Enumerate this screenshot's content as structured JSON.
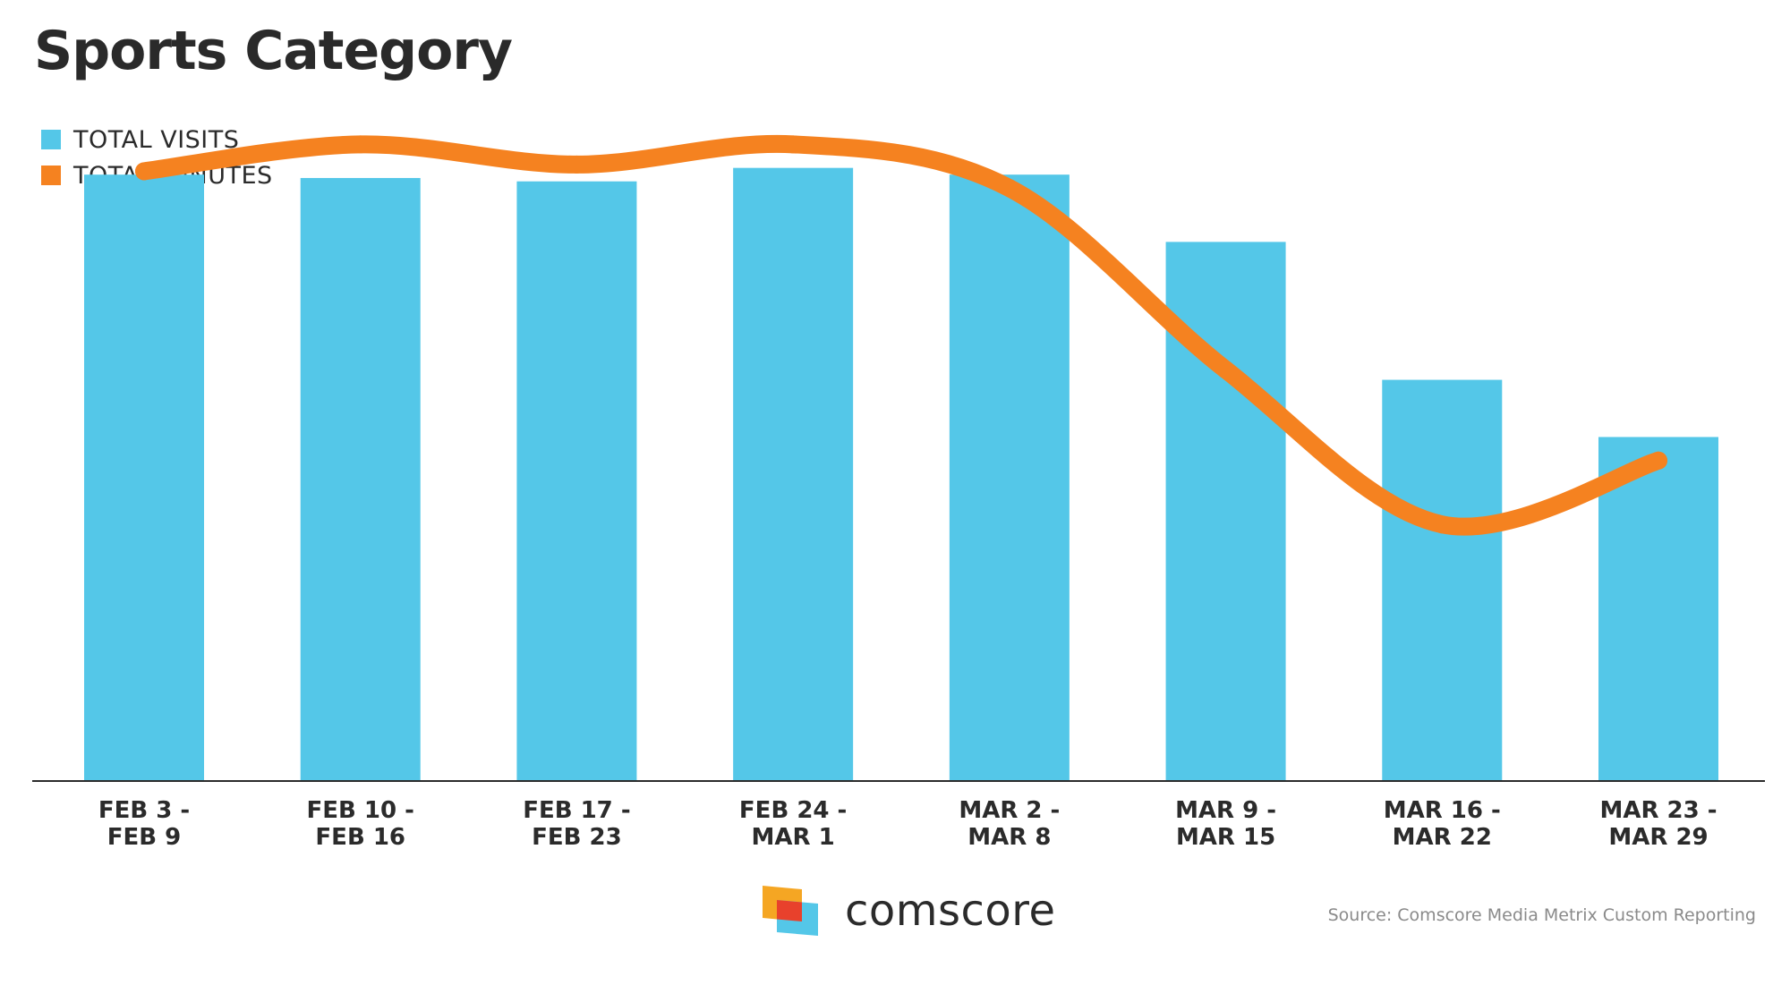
{
  "colors": {
    "visits": "#54c7e8",
    "minutes": "#f58220",
    "axis": "#2b2b2b",
    "logo_yellow": "#f5a623",
    "logo_red": "#e8412c",
    "logo_blue": "#54c7e8"
  },
  "chart_data": {
    "type": "bar",
    "title": "Sports Category",
    "xlabel": "",
    "ylabel": "",
    "grid": false,
    "legend_position": "top-left",
    "ylim": [
      0,
      100
    ],
    "categories": [
      [
        "FEB 3 -",
        "FEB 9"
      ],
      [
        "FEB 10 -",
        "FEB 16"
      ],
      [
        "FEB 17 -",
        "FEB 23"
      ],
      [
        "FEB 24 -",
        "MAR 1"
      ],
      [
        "MAR 2 -",
        "MAR 8"
      ],
      [
        "MAR 9 -",
        "MAR 15"
      ],
      [
        "MAR 16 -",
        "MAR 22"
      ],
      [
        "MAR 23 -",
        "MAR 29"
      ]
    ],
    "series": [
      {
        "name": "TOTAL VISITS",
        "type": "bar",
        "values": [
          90,
          89.5,
          89,
          91,
          90,
          80,
          59.5,
          51
        ]
      },
      {
        "name": "TOTAL MINUTES",
        "type": "line",
        "smooth": true,
        "values": [
          90.5,
          94.5,
          91.5,
          94.5,
          88,
          61,
          38,
          47.5
        ]
      }
    ]
  },
  "branding": {
    "logo_text": "comscore",
    "source": "Source: Comscore Media Metrix Custom Reporting"
  }
}
